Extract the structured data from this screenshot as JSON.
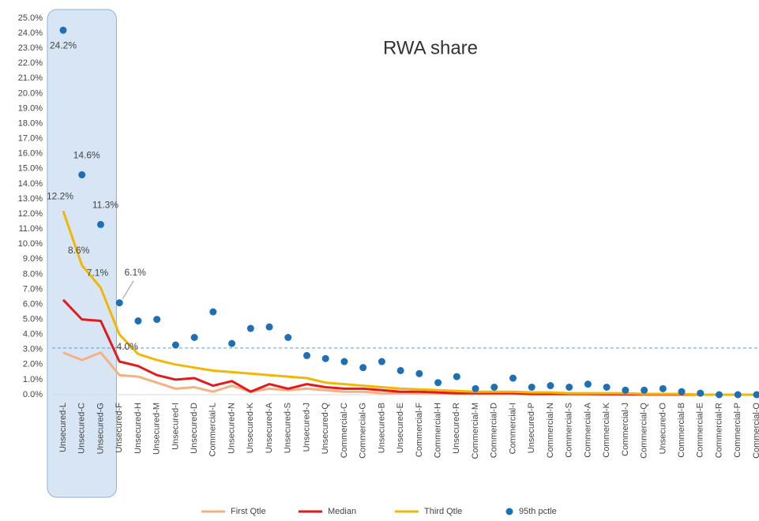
{
  "chart_data": {
    "type": "line",
    "title": "RWA share",
    "categories": [
      "Unsecured-L",
      "Unsecured-C",
      "Unsecured-G",
      "Unsecured-F",
      "Unsecured-H",
      "Unsecured-M",
      "Unsecured-I",
      "Unsecured-D",
      "Commercial-L",
      "Unsecured-N",
      "Unsecured-K",
      "Unsecured-A",
      "Unsecured-S",
      "Unsecured-J",
      "Unsecured-Q",
      "Commercial-C",
      "Commercial-G",
      "Unsecured-B",
      "Unsecured-E",
      "Commercial-F",
      "Commercial-H",
      "Unsecured-R",
      "Commercial-M",
      "Commercial-D",
      "Commercial-I",
      "Unsecured-P",
      "Commercial-N",
      "Commercial-S",
      "Commercial-A",
      "Commercial-K",
      "Commercial-J",
      "Commercial-Q",
      "Unsecured-O",
      "Commercial-B",
      "Commercial-E",
      "Commercial-R",
      "Commercial-P",
      "Commercial-O"
    ],
    "series": [
      {
        "name": "First Qtle",
        "color": "#f4b183",
        "mode": "line",
        "values": [
          2.8,
          2.3,
          2.8,
          1.3,
          1.2,
          0.8,
          0.4,
          0.5,
          0.2,
          0.6,
          0.2,
          0.4,
          0.3,
          0.4,
          0.3,
          0.2,
          0.2,
          0.1,
          0.1,
          0.1,
          0.1,
          0.05,
          0.05,
          0.05,
          0.05,
          0.02,
          0.02,
          0.02,
          0.02,
          0.01,
          0.01,
          0.01,
          0,
          0,
          0,
          0,
          0,
          0
        ]
      },
      {
        "name": "Median",
        "color": "#e31a1c",
        "mode": "line",
        "values": [
          6.3,
          5.0,
          4.9,
          2.2,
          1.9,
          1.3,
          1.0,
          1.1,
          0.6,
          0.9,
          0.2,
          0.7,
          0.4,
          0.7,
          0.5,
          0.4,
          0.4,
          0.3,
          0.2,
          0.2,
          0.15,
          0.1,
          0.1,
          0.1,
          0.1,
          0.05,
          0.05,
          0.05,
          0.05,
          0.03,
          0.03,
          0.02,
          0.02,
          0.01,
          0,
          0,
          0,
          0
        ]
      },
      {
        "name": "Third Qtle",
        "color": "#f2b705",
        "mode": "line",
        "values": [
          12.2,
          8.6,
          7.1,
          4.0,
          2.7,
          2.3,
          2.0,
          1.8,
          1.6,
          1.5,
          1.4,
          1.3,
          1.2,
          1.1,
          0.8,
          0.7,
          0.6,
          0.5,
          0.4,
          0.35,
          0.3,
          0.25,
          0.2,
          0.2,
          0.2,
          0.15,
          0.15,
          0.1,
          0.1,
          0.1,
          0.1,
          0.05,
          0.05,
          0.05,
          0,
          0,
          0,
          0
        ],
        "value_labels": [
          "12.2%",
          "8.6%",
          "7.1%",
          "4.0%",
          null,
          null,
          null,
          null,
          null,
          null,
          null,
          null,
          null,
          null,
          null,
          null,
          null,
          null,
          null,
          null,
          null,
          null,
          null,
          null,
          null,
          null,
          null,
          null,
          null,
          null,
          null,
          null,
          null,
          null,
          null,
          null,
          null,
          null
        ]
      },
      {
        "name": "95th pctle",
        "color": "#1f6fb5",
        "mode": "markers",
        "values": [
          24.2,
          14.6,
          11.3,
          6.1,
          4.9,
          5.0,
          3.3,
          3.8,
          5.5,
          3.4,
          4.4,
          4.5,
          3.8,
          2.6,
          2.4,
          2.2,
          1.8,
          2.2,
          1.6,
          1.4,
          0.8,
          1.2,
          0.4,
          0.5,
          1.1,
          0.5,
          0.6,
          0.5,
          0.7,
          0.5,
          0.3,
          0.3,
          0.4,
          0.2,
          0.1,
          0.0,
          0.0,
          0.0
        ],
        "value_labels": [
          "24.2%",
          "14.6%",
          "11.3%",
          "6.1%",
          null,
          null,
          null,
          null,
          null,
          null,
          null,
          null,
          null,
          null,
          null,
          null,
          null,
          null,
          null,
          null,
          null,
          null,
          null,
          null,
          null,
          null,
          null,
          null,
          null,
          null,
          null,
          null,
          null,
          null,
          null,
          null,
          null,
          null
        ]
      }
    ],
    "reference_line": 3.1,
    "ylim": [
      0,
      25
    ],
    "yticks": [
      {
        "value": 0,
        "label": "0.0%"
      },
      {
        "value": 1,
        "label": "1.0%"
      },
      {
        "value": 2,
        "label": "2.0%"
      },
      {
        "value": 3,
        "label": "3.0%"
      },
      {
        "value": 4,
        "label": "4.0%"
      },
      {
        "value": 5,
        "label": "5.0%"
      },
      {
        "value": 6,
        "label": "6.0%"
      },
      {
        "value": 7,
        "label": "7.0%"
      },
      {
        "value": 8,
        "label": "8.0%"
      },
      {
        "value": 9,
        "label": "9.0%"
      },
      {
        "value": 10,
        "label": "10.0%"
      },
      {
        "value": 11,
        "label": "11.0%"
      },
      {
        "value": 12,
        "label": "12.0%"
      },
      {
        "value": 13,
        "label": "13.0%"
      },
      {
        "value": 14,
        "label": "14.0%"
      },
      {
        "value": 15,
        "label": "15.0%"
      },
      {
        "value": 16,
        "label": "16.0%"
      },
      {
        "value": 17,
        "label": "17.0%"
      },
      {
        "value": 18,
        "label": "18.0%"
      },
      {
        "value": 19,
        "label": "19.0%"
      },
      {
        "value": 20,
        "label": "20.0%"
      },
      {
        "value": 21,
        "label": "21.0%"
      },
      {
        "value": 22,
        "label": "22.0%"
      },
      {
        "value": 23,
        "label": "23.0%"
      },
      {
        "value": 24,
        "label": "24.0%"
      },
      {
        "value": 25,
        "label": "25.0%"
      }
    ],
    "grid": false
  }
}
